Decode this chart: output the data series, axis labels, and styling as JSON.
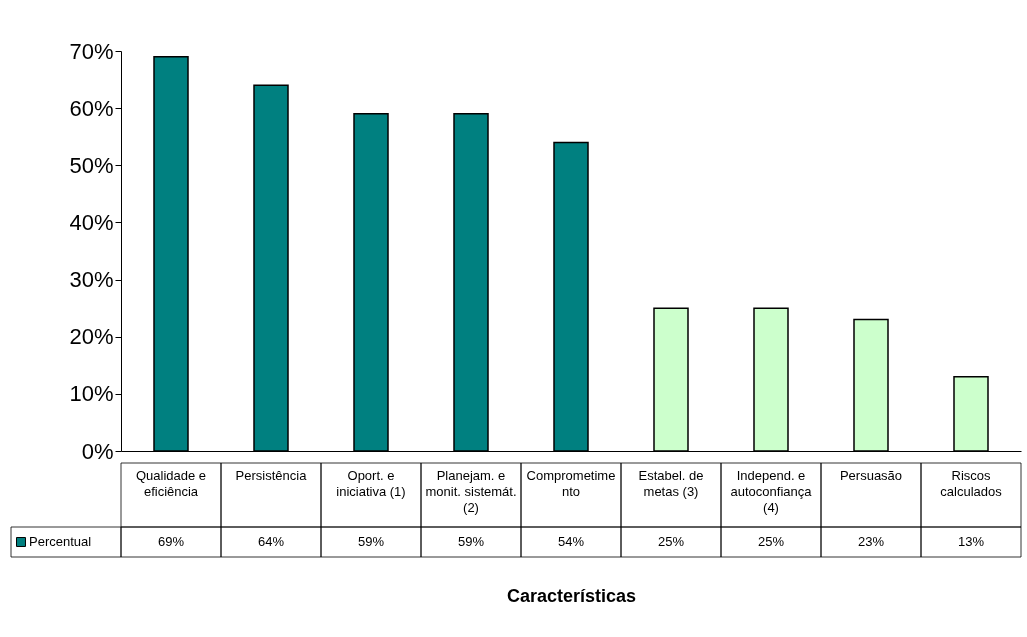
{
  "chart_data": {
    "type": "bar",
    "xlabel": "Características",
    "categories": [
      "Qualidade e eficiência",
      "Persistência",
      "Oport. e iniciativa (1)",
      "Planejam. e monit. sistemát. (2)",
      "Comprometimento",
      "Estabel. de metas (3)",
      "Independ. e autoconfiança (4)",
      "Persuasão",
      "Riscos calculados"
    ],
    "series": [
      {
        "name": "Percentual",
        "color": "#008080",
        "colors": [
          "#008080",
          "#008080",
          "#008080",
          "#008080",
          "#008080",
          "#ccffcc",
          "#ccffcc",
          "#ccffcc",
          "#ccffcc"
        ],
        "values": [
          69,
          64,
          59,
          59,
          54,
          25,
          25,
          23,
          13
        ],
        "value_labels": [
          "69%",
          "64%",
          "59%",
          "59%",
          "54%",
          "25%",
          "25%",
          "23%",
          "13%"
        ]
      }
    ],
    "ylim": [
      0,
      70
    ],
    "yticks": [
      {
        "value": 0,
        "label": "0%"
      },
      {
        "value": 10,
        "label": "10%"
      },
      {
        "value": 20,
        "label": "20%"
      },
      {
        "value": 30,
        "label": "30%"
      },
      {
        "value": 40,
        "label": "40%"
      },
      {
        "value": 50,
        "label": "50%"
      },
      {
        "value": 60,
        "label": "60%"
      },
      {
        "value": 70,
        "label": "70%"
      }
    ],
    "grid": false,
    "legend": "bottom left"
  }
}
